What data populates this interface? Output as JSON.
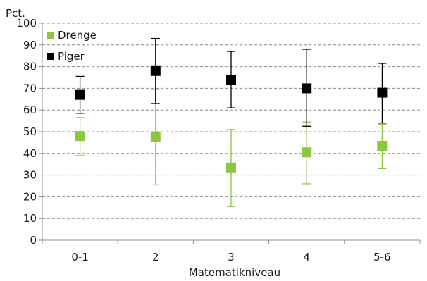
{
  "chart_data": {
    "type": "scatter",
    "ylabel": "Pct.",
    "xlabel": "Matematikniveau",
    "categories": [
      "0-1",
      "2",
      "3",
      "4",
      "5-6"
    ],
    "ylim": [
      0,
      100
    ],
    "yticks": [
      "0",
      "10",
      "20",
      "30",
      "40",
      "50",
      "60",
      "70",
      "80",
      "90",
      "100"
    ],
    "grid": "horizontal dashed",
    "legend_position": "top-left",
    "series": [
      {
        "name": "Drenge",
        "color": "#8dc63f",
        "marker": "square",
        "values": [
          48,
          47.5,
          33.5,
          40.5,
          43.5
        ],
        "error_low": [
          39,
          25.5,
          15.5,
          26,
          33
        ],
        "error_high": [
          56.5,
          69.5,
          51,
          54.5,
          53.5
        ]
      },
      {
        "name": "Piger",
        "color": "#000000",
        "marker": "square",
        "values": [
          67,
          78,
          74,
          70,
          68
        ],
        "error_low": [
          58.5,
          63,
          61,
          52.5,
          54
        ],
        "error_high": [
          75.5,
          93,
          87,
          88,
          81.5
        ]
      }
    ]
  }
}
